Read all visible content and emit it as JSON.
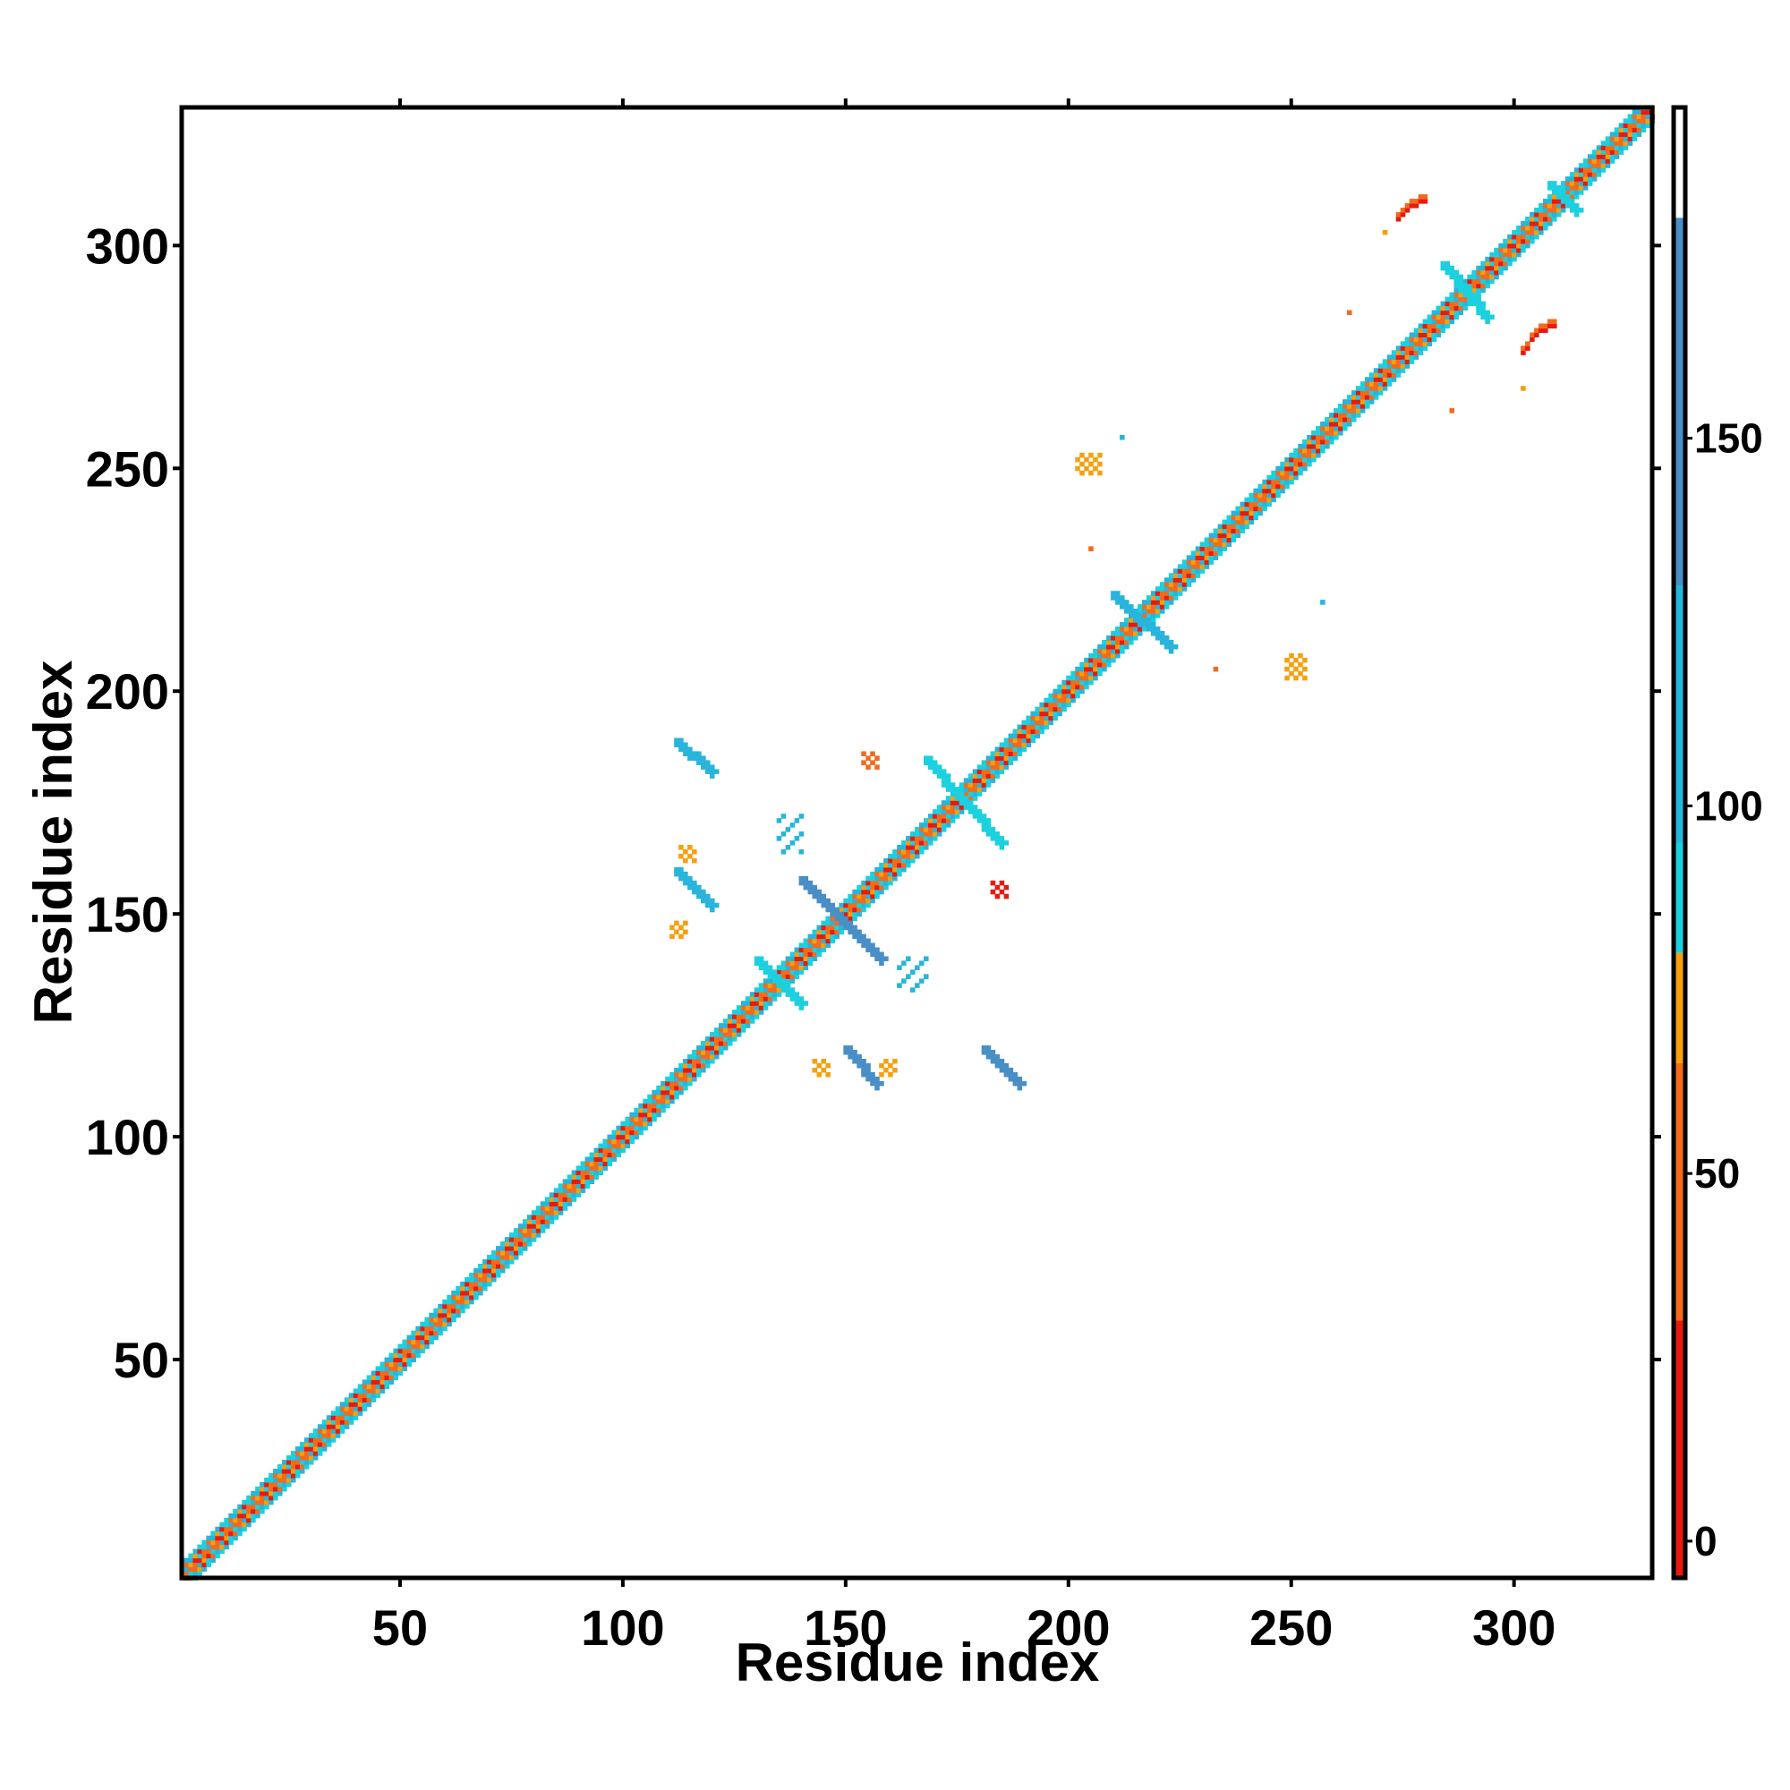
{
  "chart_data": {
    "type": "heatmap",
    "xlabel": "Residue index",
    "ylabel": "Residue index",
    "xlim": [
      1,
      331
    ],
    "ylim": [
      1,
      331
    ],
    "x_ticks": [
      50,
      100,
      150,
      200,
      250,
      300
    ],
    "y_ticks": [
      50,
      100,
      150,
      200,
      250,
      300
    ],
    "colorbar": {
      "range": [
        -5,
        195
      ],
      "ticks": [
        0,
        50,
        100,
        150
      ],
      "bands": [
        {
          "from": -5,
          "to": 30,
          "color": "#e8190e"
        },
        {
          "from": 30,
          "to": 65,
          "color": "#f26b1d"
        },
        {
          "from": 65,
          "to": 80,
          "color": "#f5a00f"
        },
        {
          "from": 80,
          "to": 95,
          "color": "#1cd0e0"
        },
        {
          "from": 95,
          "to": 130,
          "color": "#29b4dc"
        },
        {
          "from": 130,
          "to": 180,
          "color": "#4a8ec6"
        },
        {
          "from": 180,
          "to": 195,
          "color": "#ffffff"
        }
      ]
    },
    "grid": false,
    "diagonal": {
      "from": 1,
      "to": 331
    },
    "off_diagonal_features": [
      {
        "kind": "antiparallel",
        "x": [
          112,
          120
        ],
        "y": [
          189,
          182
        ],
        "color": "#29b4dc"
      },
      {
        "kind": "antiparallel",
        "x": [
          112,
          120
        ],
        "y": [
          160,
          152
        ],
        "color": "#29b4dc"
      },
      {
        "kind": "antiparallel",
        "x": [
          140,
          158
        ],
        "y": [
          158,
          140
        ],
        "color": "#4a8ec6"
      },
      {
        "kind": "antiparallel",
        "x": [
          150,
          157
        ],
        "y": [
          120,
          112
        ],
        "color": "#4a8ec6"
      },
      {
        "kind": "antiparallel",
        "x": [
          181,
          189
        ],
        "y": [
          120,
          112
        ],
        "color": "#4a8ec6"
      },
      {
        "kind": "antiparallel",
        "x": [
          168,
          185
        ],
        "y": [
          185,
          166
        ],
        "color": "#1cd0e0"
      },
      {
        "kind": "antiparallel",
        "x": [
          210,
          223
        ],
        "y": [
          222,
          210
        ],
        "color": "#29b4dc"
      },
      {
        "kind": "antiparallel",
        "x": [
          284,
          294
        ],
        "y": [
          296,
          284
        ],
        "color": "#1cd0e0"
      },
      {
        "kind": "antiparallel",
        "x": [
          308,
          314
        ],
        "y": [
          314,
          308
        ],
        "color": "#1cd0e0"
      },
      {
        "kind": "antiparallel",
        "x": [
          130,
          140
        ],
        "y": [
          140,
          130
        ],
        "color": "#1cd0e0"
      },
      {
        "kind": "arc",
        "x": [
          274,
          280
        ],
        "y": [
          306,
          310
        ],
        "color": "#e8190e"
      },
      {
        "kind": "arc",
        "x": [
          302,
          309
        ],
        "y": [
          276,
          282
        ],
        "color": "#e8190e"
      },
      {
        "kind": "patch",
        "x": [
          143,
          146
        ],
        "y": [
          114,
          117
        ],
        "color": "#f5a00f"
      },
      {
        "kind": "patch",
        "x": [
          158,
          161
        ],
        "y": [
          114,
          117
        ],
        "color": "#f5a00f"
      },
      {
        "kind": "patch",
        "x": [
          113,
          116
        ],
        "y": [
          162,
          165
        ],
        "color": "#f5a00f"
      },
      {
        "kind": "patch",
        "x": [
          111,
          114
        ],
        "y": [
          145,
          148
        ],
        "color": "#f5a00f"
      },
      {
        "kind": "patch",
        "x": [
          183,
          186
        ],
        "y": [
          154,
          157
        ],
        "color": "#e8190e"
      },
      {
        "kind": "patch",
        "x": [
          154,
          157
        ],
        "y": [
          183,
          186
        ],
        "color": "#f26b1d"
      },
      {
        "kind": "patch",
        "x": [
          202,
          207
        ],
        "y": [
          249,
          253
        ],
        "color": "#f5a00f"
      },
      {
        "kind": "patch",
        "x": [
          249,
          253
        ],
        "y": [
          203,
          208
        ],
        "color": "#f5a00f"
      },
      {
        "kind": "scatter",
        "x": [
          135,
          140
        ],
        "y": [
          164,
          172
        ],
        "color": "#29b4dc"
      },
      {
        "kind": "scatter",
        "x": [
          162,
          168
        ],
        "y": [
          133,
          140
        ],
        "color": "#29b4dc"
      },
      {
        "kind": "dot",
        "x": 263,
        "y": 285,
        "color": "#f26b1d"
      },
      {
        "kind": "dot",
        "x": 286,
        "y": 263,
        "color": "#f26b1d"
      },
      {
        "kind": "dot",
        "x": 271,
        "y": 303,
        "color": "#f5a00f"
      },
      {
        "kind": "dot",
        "x": 302,
        "y": 268,
        "color": "#f5a00f"
      },
      {
        "kind": "dot",
        "x": 212,
        "y": 257,
        "color": "#29b4dc"
      },
      {
        "kind": "dot",
        "x": 257,
        "y": 220,
        "color": "#29b4dc"
      },
      {
        "kind": "dot",
        "x": 205,
        "y": 232,
        "color": "#f26b1d"
      },
      {
        "kind": "dot",
        "x": 233,
        "y": 205,
        "color": "#f26b1d"
      }
    ]
  }
}
